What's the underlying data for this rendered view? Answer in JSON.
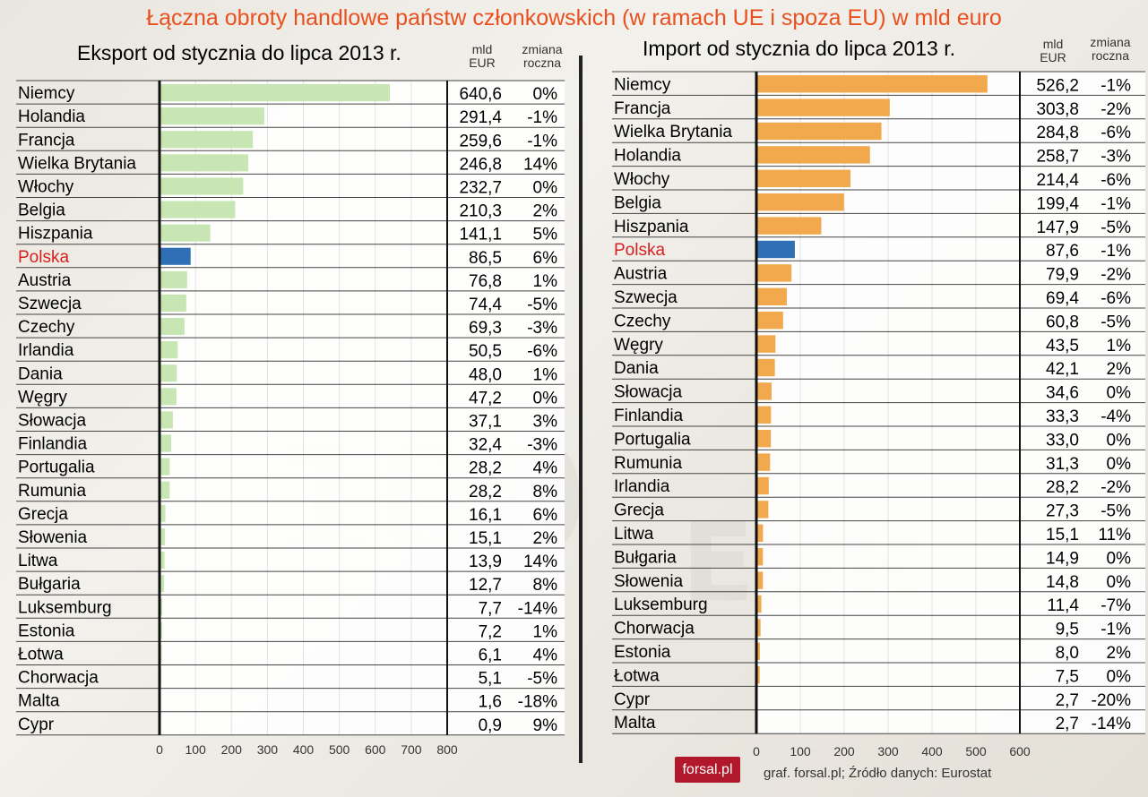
{
  "title": "Łączna obroty handlowe państw członkowskich (w ramach UE i spoza EU) w mld euro",
  "export": {
    "subtitle": "Eksport od stycznia do lipca 2013 r.",
    "col_value_l1": "mld",
    "col_value_l2": "EUR",
    "col_change_l1": "zmiana",
    "col_change_l2": "roczna"
  },
  "import": {
    "subtitle": "Import od stycznia do lipca 2013 r.",
    "col_value_l1": "mld",
    "col_value_l2": "EUR",
    "col_change_l1": "zmiana",
    "col_change_l2": "roczna"
  },
  "colors": {
    "title": "#e8501f",
    "highlight": "#2f6fb5",
    "export_bar": "#c7e6b4",
    "import_bar": "#f2a84c",
    "highlight_label": "#d62020"
  },
  "logo_text": "forsal.pl",
  "source": "graf. forsal.pl; Źródło danych: Eurostat",
  "chart_data": [
    {
      "type": "bar",
      "title": "Eksport od stycznia do lipca 2013 r.",
      "orientation": "horizontal",
      "highlight": "Polska",
      "xlim": [
        0,
        800
      ],
      "ticks": [
        "0",
        "100",
        "200",
        "300",
        "400",
        "500",
        "600",
        "700",
        "800"
      ],
      "rows": [
        {
          "country": "Niemcy",
          "value": 640.6,
          "value_label": "640,6",
          "change": "0%"
        },
        {
          "country": "Holandia",
          "value": 291.4,
          "value_label": "291,4",
          "change": "-1%"
        },
        {
          "country": "Francja",
          "value": 259.6,
          "value_label": "259,6",
          "change": "-1%"
        },
        {
          "country": "Wielka Brytania",
          "value": 246.8,
          "value_label": "246,8",
          "change": "14%"
        },
        {
          "country": "Włochy",
          "value": 232.7,
          "value_label": "232,7",
          "change": "0%"
        },
        {
          "country": "Belgia",
          "value": 210.3,
          "value_label": "210,3",
          "change": "2%"
        },
        {
          "country": "Hiszpania",
          "value": 141.1,
          "value_label": "141,1",
          "change": "5%"
        },
        {
          "country": "Polska",
          "value": 86.5,
          "value_label": "86,5",
          "change": "6%"
        },
        {
          "country": "Austria",
          "value": 76.8,
          "value_label": "76,8",
          "change": "1%"
        },
        {
          "country": "Szwecja",
          "value": 74.4,
          "value_label": "74,4",
          "change": "-5%"
        },
        {
          "country": "Czechy",
          "value": 69.3,
          "value_label": "69,3",
          "change": "-3%"
        },
        {
          "country": "Irlandia",
          "value": 50.5,
          "value_label": "50,5",
          "change": "-6%"
        },
        {
          "country": "Dania",
          "value": 48.0,
          "value_label": "48,0",
          "change": "1%"
        },
        {
          "country": "Węgry",
          "value": 47.2,
          "value_label": "47,2",
          "change": "0%"
        },
        {
          "country": "Słowacja",
          "value": 37.1,
          "value_label": "37,1",
          "change": "3%"
        },
        {
          "country": "Finlandia",
          "value": 32.4,
          "value_label": "32,4",
          "change": "-3%"
        },
        {
          "country": "Portugalia",
          "value": 28.2,
          "value_label": "28,2",
          "change": "4%"
        },
        {
          "country": "Rumunia",
          "value": 28.2,
          "value_label": "28,2",
          "change": "8%"
        },
        {
          "country": "Grecja",
          "value": 16.1,
          "value_label": "16,1",
          "change": "6%"
        },
        {
          "country": "Słowenia",
          "value": 15.1,
          "value_label": "15,1",
          "change": "2%"
        },
        {
          "country": "Litwa",
          "value": 13.9,
          "value_label": "13,9",
          "change": "14%"
        },
        {
          "country": "Bułgaria",
          "value": 12.7,
          "value_label": "12,7",
          "change": "8%"
        },
        {
          "country": "Luksemburg",
          "value": 7.7,
          "value_label": "7,7",
          "change": "-14%"
        },
        {
          "country": "Estonia",
          "value": 7.2,
          "value_label": "7,2",
          "change": "1%"
        },
        {
          "country": "Łotwa",
          "value": 6.1,
          "value_label": "6,1",
          "change": "4%"
        },
        {
          "country": "Chorwacja",
          "value": 5.1,
          "value_label": "5,1",
          "change": "-5%"
        },
        {
          "country": "Malta",
          "value": 1.6,
          "value_label": "1,6",
          "change": "-18%"
        },
        {
          "country": "Cypr",
          "value": 0.9,
          "value_label": "0,9",
          "change": "9%"
        }
      ]
    },
    {
      "type": "bar",
      "title": "Import od stycznia do lipca 2013 r.",
      "orientation": "horizontal",
      "highlight": "Polska",
      "xlim": [
        0,
        600
      ],
      "ticks": [
        "0",
        "100",
        "200",
        "300",
        "400",
        "500",
        "600"
      ],
      "rows": [
        {
          "country": "Niemcy",
          "value": 526.2,
          "value_label": "526,2",
          "change": "-1%"
        },
        {
          "country": "Francja",
          "value": 303.8,
          "value_label": "303,8",
          "change": "-2%"
        },
        {
          "country": "Wielka Brytania",
          "value": 284.8,
          "value_label": "284,8",
          "change": "-6%"
        },
        {
          "country": "Holandia",
          "value": 258.7,
          "value_label": "258,7",
          "change": "-3%"
        },
        {
          "country": "Włochy",
          "value": 214.4,
          "value_label": "214,4",
          "change": "-6%"
        },
        {
          "country": "Belgia",
          "value": 199.4,
          "value_label": "199,4",
          "change": "-1%"
        },
        {
          "country": "Hiszpania",
          "value": 147.9,
          "value_label": "147,9",
          "change": "-5%"
        },
        {
          "country": "Polska",
          "value": 87.6,
          "value_label": "87,6",
          "change": "-1%"
        },
        {
          "country": "Austria",
          "value": 79.9,
          "value_label": "79,9",
          "change": "-2%"
        },
        {
          "country": "Szwecja",
          "value": 69.4,
          "value_label": "69,4",
          "change": "-6%"
        },
        {
          "country": "Czechy",
          "value": 60.8,
          "value_label": "60,8",
          "change": "-5%"
        },
        {
          "country": "Węgry",
          "value": 43.5,
          "value_label": "43,5",
          "change": "1%"
        },
        {
          "country": "Dania",
          "value": 42.1,
          "value_label": "42,1",
          "change": "2%"
        },
        {
          "country": "Słowacja",
          "value": 34.6,
          "value_label": "34,6",
          "change": "0%"
        },
        {
          "country": "Finlandia",
          "value": 33.3,
          "value_label": "33,3",
          "change": "-4%"
        },
        {
          "country": "Portugalia",
          "value": 33.0,
          "value_label": "33,0",
          "change": "0%"
        },
        {
          "country": "Rumunia",
          "value": 31.3,
          "value_label": "31,3",
          "change": "0%"
        },
        {
          "country": "Irlandia",
          "value": 28.2,
          "value_label": "28,2",
          "change": "-2%"
        },
        {
          "country": "Grecja",
          "value": 27.3,
          "value_label": "27,3",
          "change": "-5%"
        },
        {
          "country": "Litwa",
          "value": 15.1,
          "value_label": "15,1",
          "change": "11%"
        },
        {
          "country": "Bułgaria",
          "value": 14.9,
          "value_label": "14,9",
          "change": "0%"
        },
        {
          "country": "Słowenia",
          "value": 14.8,
          "value_label": "14,8",
          "change": "0%"
        },
        {
          "country": "Luksemburg",
          "value": 11.4,
          "value_label": "11,4",
          "change": "-7%"
        },
        {
          "country": "Chorwacja",
          "value": 9.5,
          "value_label": "9,5",
          "change": "-1%"
        },
        {
          "country": "Estonia",
          "value": 8.0,
          "value_label": "8,0",
          "change": "2%"
        },
        {
          "country": "Łotwa",
          "value": 7.5,
          "value_label": "7,5",
          "change": "0%"
        },
        {
          "country": "Cypr",
          "value": 2.7,
          "value_label": "2,7",
          "change": "-20%"
        },
        {
          "country": "Malta",
          "value": 2.7,
          "value_label": "2,7",
          "change": "-14%"
        }
      ]
    }
  ]
}
